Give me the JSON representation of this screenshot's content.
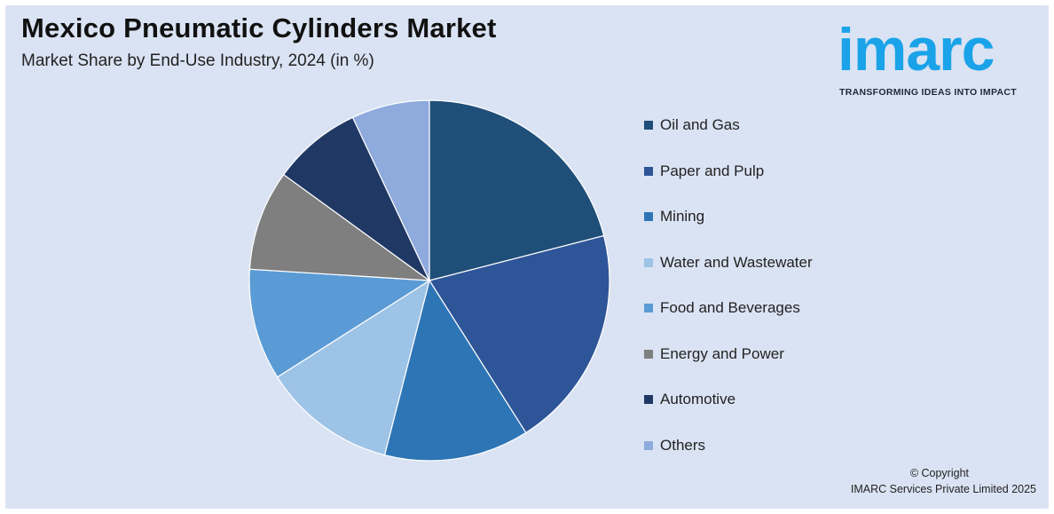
{
  "header": {
    "title": "Mexico Pneumatic Cylinders Market",
    "subtitle": "Market Share by End-Use Industry, 2024 (in %)"
  },
  "logo": {
    "wordmark": "imarc",
    "tagline": "TRANSFORMING IDEAS INTO IMPACT",
    "color": "#1aa3e8"
  },
  "footer": {
    "copyright_line1": "© Copyright",
    "copyright_line2": "IMARC Services Private Limited 2025"
  },
  "chart_data": {
    "type": "pie",
    "title": "Mexico Pneumatic Cylinders Market",
    "subtitle": "Market Share by End-Use Industry, 2024 (in %)",
    "legend_position": "right",
    "start_angle_deg": 0,
    "direction": "clockwise",
    "slices": [
      {
        "label": "Oil and Gas",
        "value": 21,
        "color": "#1f4e79"
      },
      {
        "label": "Paper and Pulp",
        "value": 20,
        "color": "#2e5597"
      },
      {
        "label": "Mining",
        "value": 13,
        "color": "#2e75b6"
      },
      {
        "label": "Water and Wastewater",
        "value": 12,
        "color": "#9dc3e6"
      },
      {
        "label": "Food and Beverages",
        "value": 10,
        "color": "#5b9bd5"
      },
      {
        "label": "Energy and Power",
        "value": 9,
        "color": "#7f7f7f"
      },
      {
        "label": "Automotive",
        "value": 8,
        "color": "#203864"
      },
      {
        "label": "Others",
        "value": 7,
        "color": "#8faadc"
      }
    ]
  }
}
